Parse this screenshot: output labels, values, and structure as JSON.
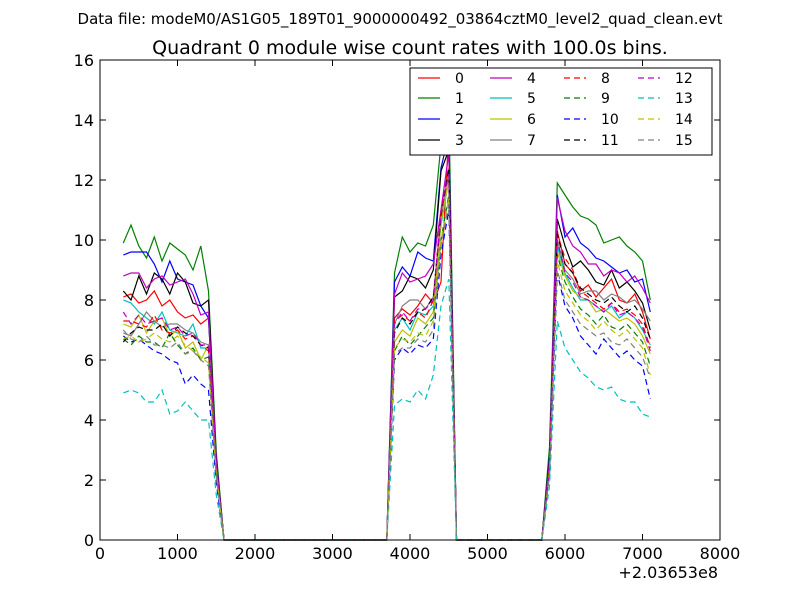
{
  "figure": {
    "suptitle": "Data file: modeM0/AS1G05_189T01_9000000492_03864cztM0_level2_quad_clean.evt",
    "title": "Quadrant 0 module wise count rates with 100.0s bins.",
    "x_offset_label": "+2.03653e8"
  },
  "chart_data": {
    "type": "line",
    "xlim": [
      0,
      8000
    ],
    "ylim": [
      0,
      16
    ],
    "xticks": [
      0,
      1000,
      2000,
      3000,
      4000,
      5000,
      6000,
      7000,
      8000
    ],
    "yticks": [
      0,
      2,
      4,
      6,
      8,
      10,
      12,
      14,
      16
    ],
    "grid": false,
    "legend_position": "top-right",
    "x": [
      300,
      400,
      500,
      600,
      700,
      800,
      900,
      1000,
      1100,
      1200,
      1300,
      1400,
      1500,
      1600,
      1700,
      3700,
      3800,
      3900,
      4000,
      4100,
      4200,
      4300,
      4400,
      4500,
      4600,
      5700,
      5800,
      5900,
      6000,
      6100,
      6200,
      6300,
      6400,
      6500,
      6600,
      6700,
      6800,
      6900,
      7000,
      7100
    ],
    "series": [
      {
        "name": "0",
        "color": "#ff0000",
        "dash": "solid",
        "values": [
          8.1,
          8.2,
          7.9,
          8.0,
          8.3,
          7.8,
          8.0,
          7.6,
          7.4,
          7.5,
          7.2,
          7.4,
          2.5,
          0,
          0,
          0,
          7.4,
          7.7,
          7.5,
          7.8,
          8.2,
          7.9,
          8.6,
          13.6,
          0,
          0,
          2.5,
          10.3,
          9.2,
          8.9,
          8.3,
          8.5,
          8.1,
          8.4,
          8.7,
          8.0,
          7.9,
          8.2,
          7.6,
          6.7
        ]
      },
      {
        "name": "1",
        "color": "#008000",
        "dash": "solid",
        "values": [
          9.9,
          10.5,
          9.8,
          9.4,
          10.1,
          9.3,
          9.9,
          9.7,
          9.5,
          9.0,
          9.8,
          8.3,
          2.9,
          0,
          0,
          0,
          8.9,
          10.1,
          9.6,
          9.9,
          9.8,
          10.5,
          13.2,
          14.5,
          0,
          0,
          3.1,
          11.9,
          11.5,
          11.1,
          10.8,
          10.7,
          10.5,
          9.9,
          10.0,
          10.1,
          9.8,
          9.6,
          9.3,
          8.0
        ]
      },
      {
        "name": "2",
        "color": "#0000ff",
        "dash": "solid",
        "values": [
          9.5,
          9.6,
          9.6,
          9.6,
          9.2,
          8.6,
          9.3,
          8.7,
          8.6,
          8.5,
          7.8,
          7.4,
          2.7,
          0,
          0,
          0,
          8.6,
          9.1,
          8.8,
          9.6,
          9.4,
          9.3,
          12.4,
          13.5,
          0,
          0,
          2.8,
          11.5,
          10.1,
          10.4,
          9.9,
          9.7,
          9.4,
          9.3,
          9.1,
          8.9,
          9.0,
          8.6,
          8.7,
          7.6
        ]
      },
      {
        "name": "3",
        "color": "#000000",
        "dash": "solid",
        "values": [
          8.3,
          8.0,
          8.8,
          8.2,
          8.9,
          8.7,
          8.2,
          8.9,
          8.6,
          7.9,
          7.8,
          8.0,
          2.7,
          0,
          0,
          0,
          8.1,
          8.3,
          8.8,
          8.7,
          8.4,
          9.0,
          12.3,
          13.0,
          0,
          0,
          2.7,
          10.7,
          9.8,
          9.1,
          9.3,
          9.0,
          8.6,
          8.5,
          9.0,
          8.4,
          8.6,
          8.3,
          7.9,
          7.0
        ]
      },
      {
        "name": "4",
        "color": "#bf00bf",
        "dash": "solid",
        "values": [
          8.8,
          8.9,
          8.9,
          8.4,
          8.7,
          8.8,
          8.5,
          8.6,
          8.7,
          8.2,
          7.5,
          7.6,
          2.6,
          0,
          0,
          0,
          8.2,
          8.9,
          8.6,
          8.7,
          8.8,
          9.2,
          11.0,
          12.9,
          0,
          0,
          2.6,
          11.4,
          10.3,
          9.8,
          9.6,
          9.2,
          9.2,
          8.8,
          9.0,
          8.9,
          8.6,
          8.8,
          8.4,
          7.9
        ]
      },
      {
        "name": "5",
        "color": "#00bfbf",
        "dash": "solid",
        "values": [
          8.0,
          7.9,
          7.6,
          7.4,
          7.2,
          7.6,
          7.0,
          6.9,
          6.8,
          7.2,
          6.4,
          6.4,
          2.3,
          0,
          0,
          0,
          7.0,
          7.4,
          7.0,
          7.6,
          7.5,
          7.8,
          10.5,
          12.0,
          0,
          0,
          2.4,
          9.8,
          8.9,
          8.4,
          8.0,
          8.0,
          7.8,
          7.6,
          7.8,
          7.4,
          7.6,
          7.4,
          7.0,
          6.5
        ]
      },
      {
        "name": "6",
        "color": "#bfbf00",
        "dash": "solid",
        "values": [
          7.2,
          7.1,
          7.5,
          6.9,
          7.3,
          7.4,
          6.8,
          7.0,
          6.4,
          6.6,
          6.0,
          6.5,
          2.2,
          0,
          0,
          0,
          6.6,
          7.0,
          6.8,
          7.4,
          7.2,
          7.6,
          10.6,
          12.0,
          0,
          0,
          2.3,
          9.6,
          8.8,
          8.3,
          8.1,
          8.0,
          7.6,
          7.7,
          7.5,
          7.3,
          7.4,
          7.2,
          6.8,
          6.2
        ]
      },
      {
        "name": "7",
        "color": "#808080",
        "dash": "solid",
        "values": [
          6.9,
          6.8,
          7.2,
          7.6,
          7.3,
          7.1,
          7.2,
          7.2,
          7.0,
          6.9,
          6.6,
          6.5,
          2.3,
          0,
          0,
          0,
          7.2,
          7.8,
          8.0,
          8.0,
          7.7,
          8.1,
          10.8,
          12.3,
          0,
          0,
          2.4,
          10.0,
          9.0,
          8.7,
          8.2,
          8.3,
          8.3,
          8.0,
          8.2,
          8.1,
          7.9,
          8.0,
          7.7,
          7.3
        ]
      },
      {
        "name": "8",
        "color": "#ff0000",
        "dash": "dash",
        "values": [
          7.3,
          7.3,
          7.2,
          7.1,
          7.5,
          7.0,
          6.9,
          7.0,
          6.7,
          6.8,
          6.5,
          6.3,
          2.3,
          0,
          0,
          0,
          7.3,
          7.5,
          7.3,
          7.6,
          7.4,
          8.0,
          11.0,
          12.4,
          0,
          0,
          2.5,
          10.2,
          9.4,
          9.0,
          8.3,
          8.1,
          7.9,
          7.7,
          7.9,
          7.6,
          7.7,
          7.5,
          7.2,
          6.4
        ]
      },
      {
        "name": "9",
        "color": "#008000",
        "dash": "dash",
        "values": [
          6.7,
          6.5,
          6.8,
          6.6,
          6.6,
          6.4,
          6.9,
          6.5,
          6.2,
          6.4,
          6.0,
          6.1,
          2.2,
          0,
          0,
          0,
          6.3,
          6.8,
          6.5,
          6.8,
          7.1,
          7.4,
          10.0,
          11.5,
          0,
          0,
          2.3,
          9.5,
          8.6,
          8.1,
          7.7,
          7.5,
          7.2,
          7.5,
          7.1,
          7.0,
          7.2,
          6.9,
          6.6,
          5.8
        ]
      },
      {
        "name": "10",
        "color": "#0000ff",
        "dash": "dash",
        "values": [
          6.8,
          6.6,
          6.7,
          6.5,
          6.3,
          6.2,
          6.0,
          5.9,
          5.2,
          5.5,
          5.2,
          5.0,
          1.9,
          0,
          0,
          0,
          6.0,
          6.4,
          6.2,
          6.5,
          6.4,
          6.7,
          9.5,
          11.0,
          0,
          0,
          2.2,
          8.9,
          7.8,
          7.4,
          6.8,
          6.5,
          6.2,
          6.7,
          6.4,
          6.1,
          6.3,
          6.0,
          5.8,
          4.7
        ]
      },
      {
        "name": "11",
        "color": "#000000",
        "dash": "dash",
        "values": [
          6.6,
          6.9,
          7.1,
          7.0,
          7.0,
          7.2,
          6.8,
          7.1,
          6.9,
          6.8,
          6.5,
          6.4,
          2.3,
          0,
          0,
          0,
          6.9,
          7.4,
          7.2,
          7.6,
          7.7,
          8.1,
          10.8,
          12.4,
          0,
          0,
          2.4,
          10.2,
          9.2,
          8.9,
          8.4,
          8.2,
          8.0,
          7.9,
          8.1,
          7.8,
          7.6,
          7.8,
          7.4,
          6.7
        ]
      },
      {
        "name": "12",
        "color": "#bf00bf",
        "dash": "dash",
        "values": [
          7.6,
          7.2,
          7.5,
          7.2,
          7.3,
          7.4,
          7.0,
          7.1,
          6.8,
          6.9,
          6.5,
          6.5,
          2.4,
          0,
          0,
          0,
          7.2,
          7.6,
          7.3,
          7.7,
          7.7,
          8.0,
          10.9,
          12.2,
          0,
          0,
          2.4,
          10.0,
          8.9,
          8.6,
          8.1,
          8.0,
          7.8,
          7.6,
          7.9,
          7.5,
          7.6,
          7.4,
          7.1,
          6.3
        ]
      },
      {
        "name": "13",
        "color": "#00bfbf",
        "dash": "dash",
        "values": [
          4.9,
          5.0,
          4.9,
          4.6,
          4.6,
          5.0,
          4.2,
          4.3,
          4.6,
          4.3,
          4.0,
          4.0,
          1.5,
          0,
          0,
          0,
          4.5,
          4.7,
          4.6,
          5.0,
          4.7,
          5.5,
          7.8,
          8.7,
          0,
          0,
          1.8,
          7.3,
          6.4,
          6.0,
          5.6,
          5.4,
          5.1,
          5.0,
          5.1,
          4.7,
          4.6,
          4.6,
          4.2,
          4.1
        ]
      },
      {
        "name": "14",
        "color": "#bfbf00",
        "dash": "dash",
        "values": [
          6.7,
          6.8,
          6.6,
          6.7,
          6.9,
          6.7,
          6.6,
          6.8,
          6.5,
          6.3,
          6.1,
          5.9,
          2.2,
          0,
          0,
          0,
          6.4,
          6.7,
          6.6,
          6.9,
          6.8,
          7.3,
          10.0,
          11.4,
          0,
          0,
          2.3,
          9.3,
          8.3,
          7.9,
          7.5,
          7.3,
          7.0,
          7.3,
          7.0,
          6.8,
          7.0,
          6.7,
          6.4,
          5.5
        ]
      },
      {
        "name": "15",
        "color": "#808080",
        "dash": "dash",
        "values": [
          7.0,
          6.7,
          6.6,
          6.8,
          6.5,
          6.5,
          6.4,
          6.6,
          6.2,
          6.3,
          6.0,
          5.8,
          2.1,
          0,
          0,
          0,
          6.2,
          6.4,
          6.4,
          6.7,
          6.6,
          7.0,
          9.8,
          11.2,
          0,
          0,
          2.2,
          9.0,
          8.0,
          7.6,
          7.2,
          7.0,
          6.8,
          6.9,
          6.6,
          6.5,
          6.7,
          6.4,
          6.1,
          5.4
        ]
      }
    ]
  }
}
